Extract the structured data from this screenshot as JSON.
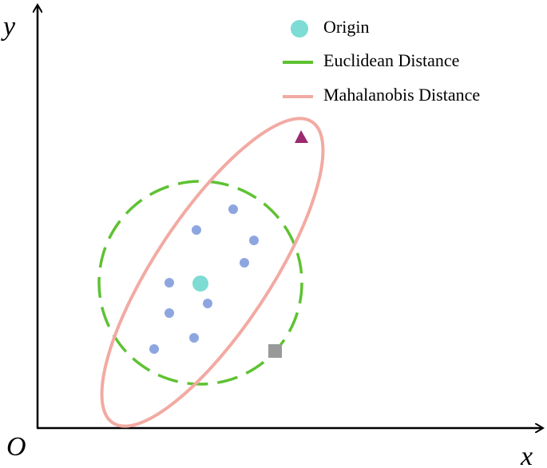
{
  "axes": {
    "y": "y",
    "x": "x",
    "origin": "O"
  },
  "legend": [
    {
      "label": "Origin"
    },
    {
      "label": "Euclidean Distance"
    },
    {
      "label": "Mahalanobis Distance"
    }
  ]
}
